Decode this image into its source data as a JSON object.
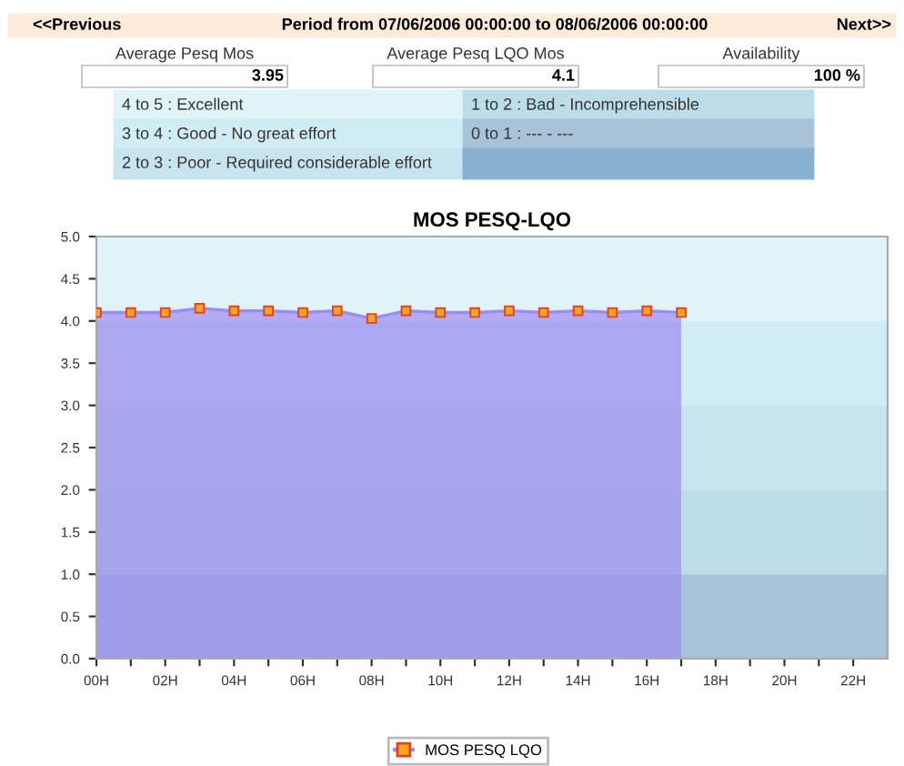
{
  "chart_data": {
    "type": "area",
    "title": "MOS PESQ-LQO",
    "x": [
      0,
      1,
      2,
      3,
      4,
      5,
      6,
      7,
      8,
      9,
      10,
      11,
      12,
      13,
      14,
      15,
      16,
      17
    ],
    "series": [
      {
        "name": "MOS PESQ LQO",
        "color": "#9b8cf0",
        "values": [
          4.1,
          4.1,
          4.1,
          4.15,
          4.12,
          4.12,
          4.1,
          4.12,
          4.03,
          4.12,
          4.1,
          4.1,
          4.12,
          4.1,
          4.12,
          4.1,
          4.12,
          4.1
        ]
      }
    ],
    "xlim": [
      0,
      23
    ],
    "xticks": [
      {
        "value": 0,
        "label": "00H"
      },
      {
        "value": 1,
        "label": null
      },
      {
        "value": 2,
        "label": "02H"
      },
      {
        "value": 3,
        "label": null
      },
      {
        "value": 4,
        "label": "04H"
      },
      {
        "value": 5,
        "label": null
      },
      {
        "value": 6,
        "label": "06H"
      },
      {
        "value": 7,
        "label": null
      },
      {
        "value": 8,
        "label": "08H"
      },
      {
        "value": 9,
        "label": null
      },
      {
        "value": 10,
        "label": "10H"
      },
      {
        "value": 11,
        "label": null
      },
      {
        "value": 12,
        "label": "12H"
      },
      {
        "value": 13,
        "label": null
      },
      {
        "value": 14,
        "label": "14H"
      },
      {
        "value": 15,
        "label": null
      },
      {
        "value": 16,
        "label": "16H"
      },
      {
        "value": 17,
        "label": null
      },
      {
        "value": 18,
        "label": "18H"
      },
      {
        "value": 19,
        "label": null
      },
      {
        "value": 20,
        "label": "20H"
      },
      {
        "value": 21,
        "label": null
      },
      {
        "value": 22,
        "label": "22H"
      }
    ],
    "ylim": [
      0,
      5
    ],
    "yticks": [
      {
        "value": 0,
        "label": "0.0"
      },
      {
        "value": 0.5,
        "label": "0.5"
      },
      {
        "value": 1,
        "label": "1.0"
      },
      {
        "value": 1.5,
        "label": "1.5"
      },
      {
        "value": 2,
        "label": "2.0"
      },
      {
        "value": 2.5,
        "label": "2.5"
      },
      {
        "value": 3,
        "label": "3.0"
      },
      {
        "value": 3.5,
        "label": "3.5"
      },
      {
        "value": 4,
        "label": "4.0"
      },
      {
        "value": 4.5,
        "label": "4.5"
      },
      {
        "value": 5,
        "label": "5.0"
      }
    ],
    "bands": [
      {
        "axis": "y",
        "from": 4,
        "to": 5,
        "color": "#e0f3f9"
      },
      {
        "axis": "y",
        "from": 3,
        "to": 4,
        "color": "#d0ecf4"
      },
      {
        "axis": "y",
        "from": 2,
        "to": 3,
        "color": "#c8e4ee"
      },
      {
        "axis": "y",
        "from": 1,
        "to": 2,
        "color": "#bcdde8"
      },
      {
        "axis": "y",
        "from": 0,
        "to": 1,
        "color": "#a8c2d8"
      }
    ],
    "annotations": [
      "<<Previous",
      "Period from 07/06/2006 00:00:00 to 08/06/2006 00:00:00",
      "Next>>",
      "Average Pesq Mos",
      "3.95",
      "Average Pesq LQO Mos",
      "4.1",
      "Availability",
      "100 %",
      "4 to 5 : Excellent",
      "3 to 4 : Good - No great effort",
      "2 to 3 : Poor - Required considerable effort",
      "1 to 2 : Bad - Incomprehensible",
      "0 to 1 : --- - ---"
    ],
    "marker": "square",
    "legend": "bottom",
    "grid": false
  }
}
